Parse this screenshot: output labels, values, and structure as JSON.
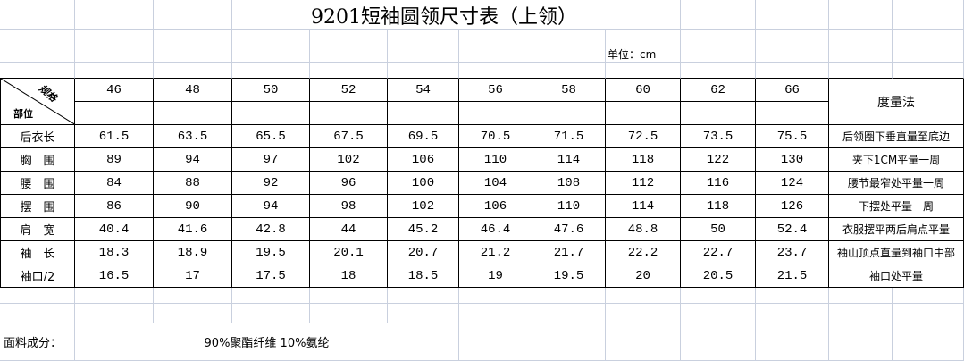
{
  "title": "9201短袖圆领尺寸表（上领）",
  "unit": "单位：cm",
  "header": {
    "spec_label": "规格",
    "part_label": "部位",
    "sizes": [
      "46",
      "48",
      "50",
      "52",
      "54",
      "56",
      "58",
      "60",
      "62",
      "66"
    ],
    "method_label": "度量法"
  },
  "rows": [
    {
      "part": "后衣长",
      "values": [
        "61.5",
        "63.5",
        "65.5",
        "67.5",
        "69.5",
        "70.5",
        "71.5",
        "72.5",
        "73.5",
        "75.5"
      ],
      "method": "后领圈下垂直量至底边"
    },
    {
      "part": "胸　围",
      "values": [
        "89",
        "94",
        "97",
        "102",
        "106",
        "110",
        "114",
        "118",
        "122",
        "130"
      ],
      "method": "夹下1CM平量一周"
    },
    {
      "part": "腰　围",
      "values": [
        "84",
        "88",
        "92",
        "96",
        "100",
        "104",
        "108",
        "112",
        "116",
        "124"
      ],
      "method": "腰节最窄处平量一周"
    },
    {
      "part": "摆　围",
      "values": [
        "86",
        "90",
        "94",
        "98",
        "102",
        "106",
        "110",
        "114",
        "118",
        "126"
      ],
      "method": "下摆处平量一周"
    },
    {
      "part": "肩　宽",
      "values": [
        "40.4",
        "41.6",
        "42.8",
        "44",
        "45.2",
        "46.4",
        "47.6",
        "48.8",
        "50",
        "52.4"
      ],
      "method": "衣服摆平两后肩点平量"
    },
    {
      "part": "袖　长",
      "values": [
        "18.3",
        "18.9",
        "19.5",
        "20.1",
        "20.7",
        "21.2",
        "21.7",
        "22.2",
        "22.7",
        "23.7"
      ],
      "method": "袖山顶点直量到袖口中部"
    },
    {
      "part": "袖口/2",
      "values": [
        "16.5",
        "17",
        "17.5",
        "18",
        "18.5",
        "19",
        "19.5",
        "20",
        "20.5",
        "21.5"
      ],
      "method": "袖口处平量"
    }
  ],
  "footer": {
    "fabric_label": "面料成分：",
    "fabric_value": "90%聚酯纤维 10%氨纶"
  }
}
